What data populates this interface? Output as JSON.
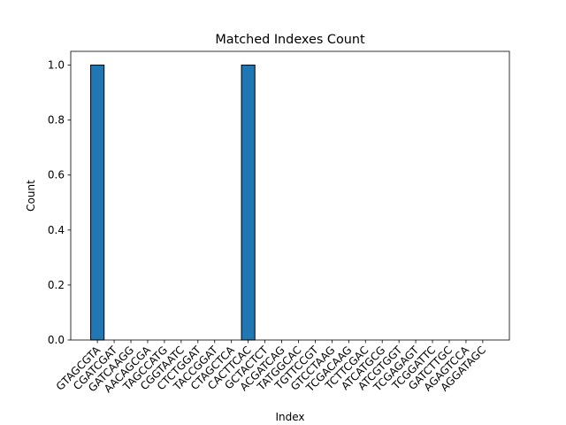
{
  "chart_data": {
    "type": "bar",
    "title": "Matched Indexes Count",
    "xlabel": "Index",
    "ylabel": "Count",
    "categories": [
      "GTAGCGTA",
      "CGATCGAT",
      "GATCAAGG",
      "AACAGCGA",
      "TAGCCATG",
      "CGGTAATC",
      "CTCTGGAT",
      "TACCGGAT",
      "CTAGCTCA",
      "CACTTCAC",
      "GCTACTCT",
      "ACGATCAG",
      "TATGGCAC",
      "TGTTCCGT",
      "GTCCTAAG",
      "TCGACAAG",
      "TCTTCGAC",
      "ATCATGCG",
      "ATCGTGGT",
      "TCGAGAGT",
      "TCGGATTC",
      "GATCTTGC",
      "AGAGTCCA",
      "AGGATAGC"
    ],
    "values": [
      1,
      0,
      0,
      0,
      0,
      0,
      0,
      0,
      0,
      1,
      0,
      0,
      0,
      0,
      0,
      0,
      0,
      0,
      0,
      0,
      0,
      0,
      0,
      0
    ],
    "ylim": [
      0,
      1.05
    ],
    "yticks": [
      0.0,
      0.2,
      0.4,
      0.6,
      0.8,
      1.0
    ],
    "ytick_labels": [
      "0.0",
      "0.2",
      "0.4",
      "0.6",
      "0.8",
      "1.0"
    ],
    "bar_color": "#1f77b4",
    "edge_color": "#000000",
    "grid": false
  }
}
